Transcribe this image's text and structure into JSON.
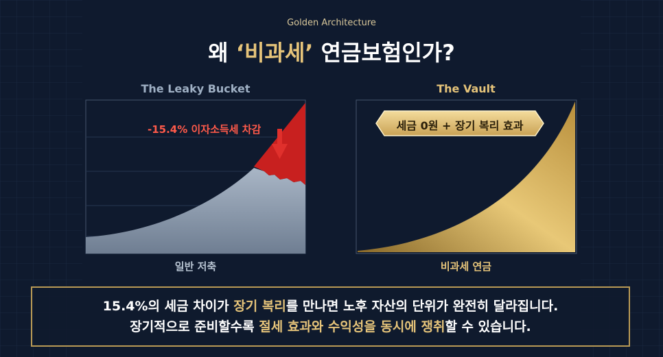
{
  "header": {
    "eyebrow": "Golden Architecture",
    "title": [
      {
        "text": "왜 ",
        "highlight": false
      },
      {
        "text": "‘비과세’",
        "highlight": true
      },
      {
        "text": " 연금보험인가?",
        "highlight": false
      }
    ]
  },
  "panels": [
    {
      "title": "The Leaky Bucket",
      "annotation": "-15.4% 이자소득세 차감",
      "caption": "일반 저축"
    },
    {
      "title": "The Vault",
      "badge": "세금 0원 + 장기 복리 효과",
      "caption": "비과세 연금"
    }
  ],
  "note": {
    "lines": [
      [
        {
          "text": "15.4%의 세금 차이가 ",
          "highlight": false
        },
        {
          "text": "장기 복리",
          "highlight": true
        },
        {
          "text": "를 만나면 노후 자산의 단위가 완전히 달라집니다.",
          "highlight": false
        }
      ],
      [
        {
          "text": "장기적으로 준비할수록 ",
          "highlight": false
        },
        {
          "text": "절세 효과와 수익성을 동시에 쟁취",
          "highlight": true
        },
        {
          "text": "할 수 있습니다.",
          "highlight": false
        }
      ]
    ]
  }
}
